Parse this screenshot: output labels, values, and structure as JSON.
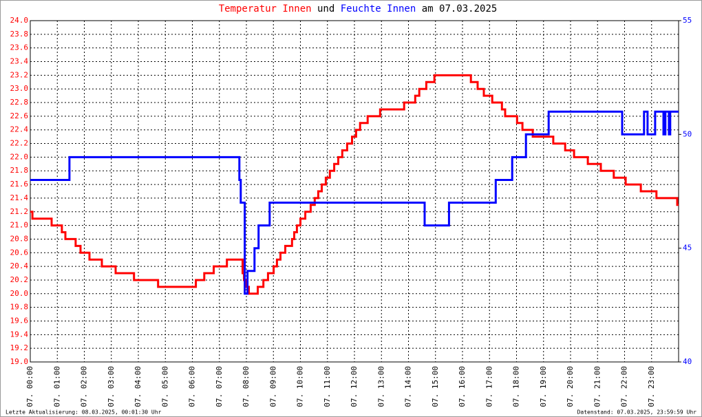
{
  "chart_data": {
    "type": "line",
    "step": "post",
    "title": [
      {
        "text": "Temperatur Innen",
        "color": "#ff0000"
      },
      {
        "text": "und",
        "color": "#000000"
      },
      {
        "text": "Feuchte Innen",
        "color": "#0000ff"
      },
      {
        "text": "am 07.03.2025",
        "color": "#000000"
      }
    ],
    "xlim": [
      0,
      24
    ],
    "xticks": [
      {
        "value": 0,
        "label": "07. 00:00"
      },
      {
        "value": 1,
        "label": "07. 01:00"
      },
      {
        "value": 2,
        "label": "07. 02:00"
      },
      {
        "value": 3,
        "label": "07. 03:00"
      },
      {
        "value": 4,
        "label": "07. 04:00"
      },
      {
        "value": 5,
        "label": "07. 05:00"
      },
      {
        "value": 6,
        "label": "07. 06:00"
      },
      {
        "value": 7,
        "label": "07. 07:00"
      },
      {
        "value": 8,
        "label": "07. 08:00"
      },
      {
        "value": 9,
        "label": "07. 09:00"
      },
      {
        "value": 10,
        "label": "07. 10:00"
      },
      {
        "value": 11,
        "label": "07. 11:00"
      },
      {
        "value": 12,
        "label": "07. 12:00"
      },
      {
        "value": 13,
        "label": "07. 13:00"
      },
      {
        "value": 14,
        "label": "07. 14:00"
      },
      {
        "value": 15,
        "label": "07. 15:00"
      },
      {
        "value": 16,
        "label": "07. 16:00"
      },
      {
        "value": 17,
        "label": "07. 17:00"
      },
      {
        "value": 18,
        "label": "07. 18:00"
      },
      {
        "value": 19,
        "label": "07. 19:00"
      },
      {
        "value": 20,
        "label": "07. 20:00"
      },
      {
        "value": 21,
        "label": "07. 21:00"
      },
      {
        "value": 22,
        "label": "07. 22:00"
      },
      {
        "value": 23,
        "label": "07. 23:00"
      }
    ],
    "ylim": [
      19.0,
      24.0
    ],
    "yticks": [
      {
        "value": 19.0,
        "label": "19.0"
      },
      {
        "value": 19.2,
        "label": "19.2"
      },
      {
        "value": 19.4,
        "label": "19.4"
      },
      {
        "value": 19.6,
        "label": "19.6"
      },
      {
        "value": 19.8,
        "label": "19.8"
      },
      {
        "value": 20.0,
        "label": "20.0"
      },
      {
        "value": 20.2,
        "label": "20.2"
      },
      {
        "value": 20.4,
        "label": "20.4"
      },
      {
        "value": 20.6,
        "label": "20.6"
      },
      {
        "value": 20.8,
        "label": "20.8"
      },
      {
        "value": 21.0,
        "label": "21.0"
      },
      {
        "value": 21.2,
        "label": "21.2"
      },
      {
        "value": 21.4,
        "label": "21.4"
      },
      {
        "value": 21.6,
        "label": "21.6"
      },
      {
        "value": 21.8,
        "label": "21.8"
      },
      {
        "value": 22.0,
        "label": "22.0"
      },
      {
        "value": 22.2,
        "label": "22.2"
      },
      {
        "value": 22.4,
        "label": "22.4"
      },
      {
        "value": 22.6,
        "label": "22.6"
      },
      {
        "value": 22.8,
        "label": "22.8"
      },
      {
        "value": 23.0,
        "label": "23.0"
      },
      {
        "value": 23.2,
        "label": "23.2"
      },
      {
        "value": 23.4,
        "label": "23.4"
      },
      {
        "value": 23.6,
        "label": "23.6"
      },
      {
        "value": 23.8,
        "label": "23.8"
      },
      {
        "value": 24.0,
        "label": "24.0"
      }
    ],
    "y2lim": [
      40,
      55
    ],
    "y2ticks": [
      40,
      45,
      50,
      55
    ],
    "grid": true,
    "series": [
      {
        "name": "Temperatur Innen",
        "color": "#ff0000",
        "x": [
          0,
          0.08,
          0.79,
          1.17,
          1.3,
          1.68,
          1.86,
          2.19,
          2.65,
          3.16,
          3.84,
          4.73,
          6.13,
          6.44,
          6.79,
          7.28,
          7.86,
          7.91,
          7.99,
          8.09,
          8.42,
          8.63,
          8.8,
          9.01,
          9.13,
          9.26,
          9.44,
          9.69,
          9.77,
          9.87,
          10.0,
          10.18,
          10.38,
          10.53,
          10.66,
          10.79,
          10.94,
          11.09,
          11.25,
          11.4,
          11.55,
          11.73,
          11.91,
          12.06,
          12.21,
          12.49,
          12.95,
          13.84,
          14.25,
          14.4,
          14.66,
          14.96,
          16.31,
          16.56,
          16.79,
          17.1,
          17.46,
          17.58,
          18.02,
          18.22,
          18.6,
          19.36,
          19.8,
          20.13,
          20.64,
          21.12,
          21.6,
          22.04,
          22.6,
          23.18,
          23.95,
          24
        ],
        "values": [
          21.2,
          21.1,
          21.0,
          20.9,
          20.8,
          20.7,
          20.6,
          20.5,
          20.4,
          20.3,
          20.2,
          20.1,
          20.2,
          20.3,
          20.4,
          20.5,
          20.3,
          20.2,
          20.1,
          20.0,
          20.1,
          20.2,
          20.3,
          20.4,
          20.5,
          20.6,
          20.7,
          20.8,
          20.9,
          21.0,
          21.1,
          21.2,
          21.3,
          21.4,
          21.5,
          21.6,
          21.7,
          21.8,
          21.9,
          22.0,
          22.1,
          22.2,
          22.3,
          22.4,
          22.5,
          22.6,
          22.7,
          22.8,
          22.9,
          23.0,
          23.1,
          23.2,
          23.1,
          23.0,
          22.9,
          22.8,
          22.7,
          22.6,
          22.5,
          22.4,
          22.3,
          22.2,
          22.1,
          22.0,
          21.9,
          21.8,
          21.7,
          21.6,
          21.5,
          21.4,
          21.3,
          21.3
        ]
      },
      {
        "name": "Feuchte Innen",
        "color": "#0000ff",
        "axis": "y2",
        "x": [
          0,
          1.45,
          7.74,
          7.79,
          7.94,
          8.04,
          8.3,
          8.45,
          8.86,
          14.6,
          15.5,
          17.23,
          17.84,
          18.35,
          19.19,
          21.91,
          22.72,
          22.85,
          23.13,
          23.44,
          23.51,
          23.64,
          23.69,
          24
        ],
        "values": [
          48,
          49,
          48,
          47,
          43,
          44,
          45,
          46,
          47,
          46,
          47,
          48,
          49,
          50,
          51,
          50,
          51,
          50,
          51,
          50,
          51,
          50,
          51,
          51
        ]
      }
    ],
    "footer_left": "Letzte Aktualisierung: 08.03.2025, 00:01:30 Uhr",
    "footer_right": "Datenstand: 07.03.2025, 23:59:59 Uhr"
  }
}
